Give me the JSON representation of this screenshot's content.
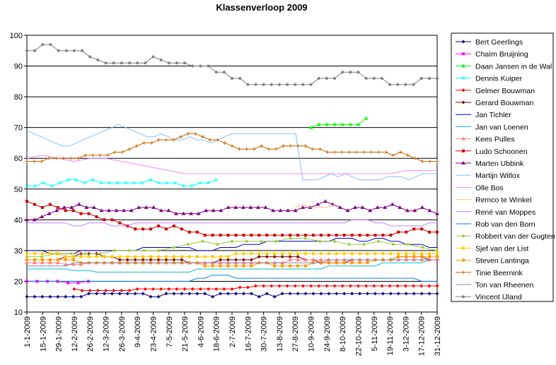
{
  "chart_data": {
    "type": "line",
    "title": "Klassenverloop 2009",
    "xlabel": "",
    "ylabel": "",
    "ylim": [
      10,
      100
    ],
    "yticks": [
      10,
      20,
      30,
      40,
      50,
      60,
      70,
      80,
      90,
      100
    ],
    "grid": "horizontal major lines",
    "legend": "right",
    "x_tick_labels": [
      "1-1-2009",
      "15-1-2009",
      "29-1-2009",
      "12-2-2009",
      "26-2-2009",
      "12-3-2009",
      "26-3-2009",
      "9-4-2009",
      "23-4-2009",
      "7-5-2009",
      "21-5-2009",
      "4-6-2009",
      "18-6-2009",
      "2-7-2009",
      "16-7-2009",
      "30-7-2009",
      "13-8-2009",
      "27-8-2009",
      "10-9-2009",
      "24-9-2009",
      "8-10-2009",
      "22-10-2009",
      "5-11-2009",
      "19-11-2009",
      "3-12-2009",
      "17-12-2009",
      "31-12-2009"
    ],
    "series": [
      {
        "name": "Bert Geerlings",
        "color": "#000080",
        "marker": "diamond",
        "values": [
          15,
          15,
          15,
          15,
          15,
          15,
          15,
          15,
          16,
          16,
          16,
          16,
          16,
          16,
          16,
          16,
          15,
          15,
          16,
          16,
          16,
          16,
          16,
          16,
          15,
          16,
          16,
          16,
          16,
          16,
          15,
          16,
          15,
          16,
          16,
          16,
          16,
          16,
          16,
          16,
          16,
          16,
          16,
          16,
          16,
          16,
          16,
          16,
          16,
          16,
          16,
          16,
          16,
          16
        ]
      },
      {
        "name": "Chaïm Bruijning",
        "color": "#ff00ff",
        "marker": "square",
        "values": [
          20,
          20,
          20,
          20,
          19.5,
          19.5,
          20
        ]
      },
      {
        "name": "Daan Jansen in de Wal",
        "color": "#00ff00",
        "marker": "triangle",
        "values": [
          70,
          71,
          71,
          71,
          71,
          71,
          71,
          73
        ],
        "start": "10-9-2009"
      },
      {
        "name": "Dennis Kuiper",
        "color": "#00ffff",
        "marker": "x",
        "values": [
          51,
          51,
          52,
          51,
          52,
          53,
          53,
          52,
          53,
          52,
          52,
          52,
          52,
          52,
          52,
          53,
          52,
          52,
          52,
          51,
          51,
          52,
          52,
          53
        ],
        "end": "18-6-2009"
      },
      {
        "name": "Gelmer Bouwman",
        "color": "#ff0000",
        "marker": "diamond",
        "values": [
          17.5,
          17,
          17,
          17,
          17,
          17,
          17,
          17,
          17.5,
          17.5,
          17.5,
          17.5,
          17.5,
          17.5,
          17.5,
          17.5,
          17.5,
          17.5,
          17.5,
          17.5,
          17.5,
          18,
          18,
          18.5,
          18.5,
          18.5,
          18.5,
          18.5,
          18.5,
          18.5,
          18.5,
          18.5,
          18.5,
          18.5,
          18.5,
          18.5,
          18.5,
          18.5,
          18.5,
          18.5,
          18.5,
          18.5,
          18.5,
          18.5,
          18.5,
          18.5,
          18.5,
          18.5,
          18.5
        ],
        "start": "19-2-2009"
      },
      {
        "name": "Gerard Bouwman",
        "color": "#800000",
        "marker": "diamond",
        "values": [
          27,
          27,
          27,
          27,
          27,
          28,
          28,
          29,
          29,
          29,
          28,
          28,
          27,
          27,
          27,
          27,
          27,
          27,
          27,
          27,
          27,
          26,
          26,
          26,
          26,
          27,
          27,
          27,
          27,
          27,
          28,
          28,
          28,
          28,
          28,
          28,
          27,
          27,
          26,
          26,
          26,
          26,
          27,
          27,
          27,
          27,
          27,
          27,
          28,
          28,
          28,
          28,
          27,
          27
        ]
      },
      {
        "name": "Jan Tichler",
        "color": "#0000c0",
        "marker": "none",
        "values": [
          30,
          30,
          30,
          29,
          29,
          29,
          29,
          30,
          30,
          30,
          30,
          30,
          30,
          30,
          30,
          31,
          31,
          31,
          31,
          31,
          31,
          31,
          30,
          30,
          30,
          31,
          31,
          31,
          32,
          32,
          32,
          33,
          33,
          33,
          33,
          33,
          33,
          33,
          33,
          33,
          34,
          34,
          34,
          33,
          33,
          34,
          34,
          33,
          33,
          32,
          32,
          32,
          31,
          31
        ]
      },
      {
        "name": "Jan van Loenen",
        "color": "#00c0c0",
        "marker": "none",
        "values": [
          24,
          24,
          24,
          24,
          24,
          24,
          23.5,
          23.5,
          23.5,
          23,
          23,
          23,
          23,
          23,
          23,
          23,
          23,
          23,
          23,
          23,
          23,
          23,
          24,
          24,
          24,
          24,
          24,
          24,
          24,
          24,
          24,
          24,
          24,
          24,
          24,
          24,
          24,
          24,
          24,
          25,
          25,
          25,
          25,
          25,
          25,
          25,
          26,
          26,
          26,
          26,
          26,
          26,
          27,
          27
        ]
      },
      {
        "name": "Kees Pulles",
        "color": "#ff8080",
        "marker": "triangle",
        "values": [
          26,
          26,
          26,
          26,
          26,
          25.5,
          25.5,
          25.5,
          26,
          26,
          26,
          26,
          26,
          26,
          26,
          26,
          26,
          26,
          26,
          26,
          26,
          26,
          26,
          26,
          26,
          26,
          26,
          26,
          26,
          26,
          26,
          26,
          26,
          26,
          27,
          27,
          27,
          27,
          27,
          27,
          27,
          27,
          27,
          27,
          27,
          27,
          27,
          27,
          27,
          27,
          27,
          27,
          27,
          27
        ]
      },
      {
        "name": "Ludo Schoonen",
        "color": "#cc0000",
        "marker": "square",
        "values": [
          46,
          45,
          44,
          45,
          44,
          43,
          43,
          42,
          42,
          41,
          40,
          40,
          39,
          38,
          37,
          37,
          37,
          38,
          37,
          38,
          37,
          36,
          36,
          35,
          35,
          35,
          35,
          35,
          35,
          35,
          35,
          35,
          35,
          35,
          35,
          35,
          35,
          35,
          35,
          35,
          35,
          35,
          35,
          35,
          35,
          35,
          35,
          35,
          36,
          36,
          37,
          37,
          36,
          36
        ]
      },
      {
        "name": "Marten Ubbink",
        "color": "#800080",
        "marker": "triangle",
        "values": [
          40,
          40,
          41,
          42,
          43,
          44,
          44,
          45,
          44,
          44,
          43,
          43,
          43,
          43,
          43,
          44,
          44,
          44,
          43,
          43,
          42,
          42,
          42,
          42,
          43,
          43,
          43,
          44,
          44,
          44,
          44,
          44,
          44,
          43,
          43,
          43,
          43,
          44,
          44,
          45,
          46,
          45,
          44,
          43,
          44,
          44,
          43,
          44,
          44,
          45,
          44,
          43,
          43,
          44,
          43,
          42
        ]
      },
      {
        "name": "Martijn Witlox",
        "color": "#80c0ff",
        "marker": "none",
        "values": [
          69,
          68,
          67,
          66,
          65,
          64,
          64,
          65,
          66,
          67,
          68,
          69,
          70,
          71,
          70,
          69,
          68,
          67,
          67,
          68,
          67,
          66,
          66,
          67,
          66,
          66,
          65,
          66,
          67,
          68,
          68,
          68,
          68,
          68,
          68,
          68,
          68,
          68,
          68,
          53,
          53,
          53,
          54,
          55,
          54,
          55,
          54,
          53,
          53,
          53,
          53,
          54,
          54,
          54,
          53,
          54,
          55,
          55,
          55
        ]
      },
      {
        "name": "Olle Bos",
        "color": "#ff80ff",
        "marker": "none",
        "values": [
          60,
          61,
          60,
          59,
          60,
          60,
          59,
          58,
          57,
          56,
          55,
          55,
          55,
          55,
          55,
          55,
          55,
          55,
          55,
          55,
          55,
          55,
          55,
          55,
          56,
          56,
          56
        ]
      },
      {
        "name": "Remco te Winkel",
        "color": "#ffc080",
        "marker": "none",
        "values": [
          44,
          45,
          44,
          44,
          44,
          45
        ],
        "start": "27-8-2009"
      },
      {
        "name": "René van Moppes",
        "color": "#c080ff",
        "marker": "none",
        "values": [
          39,
          39,
          39,
          39,
          39,
          39,
          38,
          38,
          39,
          39,
          39,
          38,
          38,
          38,
          39,
          39,
          39,
          39,
          39,
          39,
          39,
          39,
          39,
          39,
          39,
          39,
          39,
          39,
          39,
          39,
          39,
          39,
          39,
          39,
          39,
          39,
          39,
          39,
          39,
          39,
          39,
          39,
          40,
          40,
          40,
          39,
          39,
          38,
          38,
          38,
          38,
          38,
          39,
          39
        ]
      },
      {
        "name": "Rob van den Born",
        "color": "#0080ff",
        "marker": "none",
        "values": [
          20,
          20,
          20,
          20,
          20,
          20,
          20,
          20,
          20,
          20,
          20,
          20,
          20,
          20,
          20,
          20,
          20,
          20,
          20,
          20,
          20,
          20,
          21,
          21,
          22,
          22,
          22,
          21,
          21,
          21,
          21,
          21,
          21,
          21,
          21,
          21,
          21,
          21,
          21,
          21,
          21,
          21,
          21,
          21,
          21,
          21,
          21,
          21,
          21,
          21,
          21,
          20,
          20,
          20
        ]
      },
      {
        "name": "Robbert van der Gugten",
        "color": "#9acd32",
        "marker": "diamond",
        "values": [
          28,
          28,
          29,
          29,
          29,
          29,
          30,
          30,
          30,
          30,
          31,
          32,
          33,
          32,
          33,
          33,
          33,
          33,
          34,
          34,
          33,
          33,
          32,
          32,
          33,
          32,
          32,
          31,
          30
        ]
      },
      {
        "name": "Sjef van der List",
        "color": "#ffcc00",
        "marker": "square",
        "values": [
          29,
          29,
          29,
          29,
          29,
          28,
          28,
          28,
          28,
          28,
          28,
          28,
          28,
          28,
          28,
          28,
          28,
          28,
          28,
          28,
          28,
          28,
          28,
          28,
          28,
          28,
          28,
          29,
          29,
          29,
          29,
          29,
          29,
          29,
          29,
          29,
          29,
          29,
          29,
          29,
          29,
          29,
          29,
          29,
          29,
          29,
          29,
          29,
          29,
          29,
          29,
          29,
          29,
          29
        ]
      },
      {
        "name": "Steven Lantinga",
        "color": "#ff9900",
        "marker": "square",
        "values": [
          27,
          27,
          27,
          27,
          27,
          27,
          27,
          26,
          26,
          26,
          26,
          26,
          26,
          26,
          26,
          26,
          26,
          26,
          26,
          26,
          26,
          26,
          26,
          25,
          25,
          25,
          25,
          25,
          25,
          25,
          26,
          26,
          25,
          25,
          25,
          25,
          25,
          26,
          26,
          26,
          26,
          26,
          26,
          26,
          26,
          27,
          27,
          27,
          28,
          28,
          28,
          28,
          28,
          28
        ]
      },
      {
        "name": "Tinie Beernink",
        "color": "#cc6600",
        "marker": "cross",
        "values": [
          59,
          59,
          59,
          60,
          60,
          60,
          60,
          60,
          61,
          61,
          61,
          61,
          62,
          62,
          63,
          64,
          65,
          65,
          66,
          66,
          66,
          67,
          68,
          68,
          67,
          66,
          66,
          65,
          64,
          63,
          63,
          63,
          64,
          63,
          63,
          64,
          64,
          64,
          64,
          63,
          63,
          62,
          62,
          62,
          62,
          62,
          62,
          62,
          62,
          62,
          61,
          62,
          61,
          60,
          59,
          59,
          59
        ]
      },
      {
        "name": "Ton van Rheenen",
        "color": "#8080c0",
        "marker": "none",
        "values": [
          25,
          25,
          25,
          25,
          25,
          25,
          26,
          26,
          26,
          26,
          26,
          26,
          26,
          26,
          26,
          26,
          26,
          26,
          26,
          26,
          26,
          26,
          26,
          26,
          26,
          26,
          26,
          26,
          26,
          26,
          26,
          26,
          26,
          26,
          26,
          26,
          26,
          26,
          26,
          27,
          27,
          27,
          27,
          27,
          27,
          27,
          27,
          27,
          27,
          27,
          27,
          27,
          27,
          27
        ]
      },
      {
        "name": "Vincent IJland",
        "color": "#808080",
        "marker": "circle",
        "values": [
          95,
          95,
          97,
          97,
          95,
          95,
          95,
          95,
          93,
          92,
          91,
          91,
          91,
          91,
          91,
          91,
          93,
          92,
          91,
          91,
          91,
          90,
          90,
          90,
          88,
          88,
          86,
          86,
          84,
          84,
          84,
          84,
          84,
          84,
          84,
          84,
          84,
          86,
          86,
          86,
          88,
          88,
          88,
          86,
          86,
          86,
          84,
          84,
          84,
          84,
          86,
          86,
          86
        ]
      }
    ]
  }
}
